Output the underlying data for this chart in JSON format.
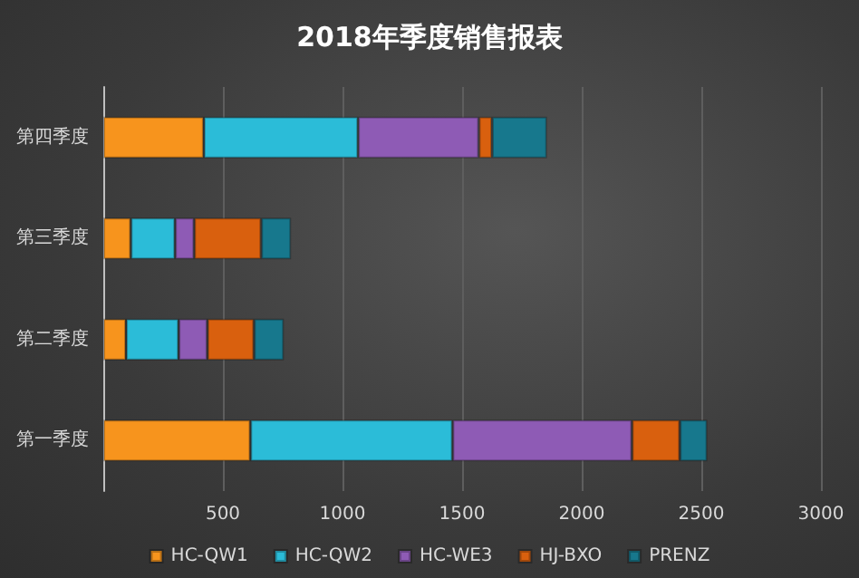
{
  "chart_data": {
    "type": "bar",
    "title": "2018年季度销售报表",
    "orientation": "horizontal",
    "stacked": true,
    "categories": [
      "第四季度",
      "第三季度",
      "第二季度",
      "第一季度"
    ],
    "series": [
      {
        "name": "HC-QW1",
        "color": "#f7941d",
        "values": [
          420,
          115,
          95,
          615
        ]
      },
      {
        "name": "HC-QW2",
        "color": "#2bbcd8",
        "values": [
          645,
          185,
          220,
          845
        ]
      },
      {
        "name": "HC-WE3",
        "color": "#8e5bb5",
        "values": [
          505,
          80,
          120,
          750
        ]
      },
      {
        "name": "HJ-BXO",
        "color": "#d9600e",
        "values": [
          55,
          280,
          195,
          200
        ]
      },
      {
        "name": "PRENZ",
        "color": "#17788d",
        "values": [
          230,
          125,
          125,
          115
        ]
      }
    ],
    "xlim": [
      0,
      3000
    ],
    "xticks": [
      {
        "value": 0,
        "label": null
      },
      500,
      1000,
      1500,
      2000,
      2500,
      3000
    ],
    "grid": "x",
    "legend": "bottom"
  }
}
